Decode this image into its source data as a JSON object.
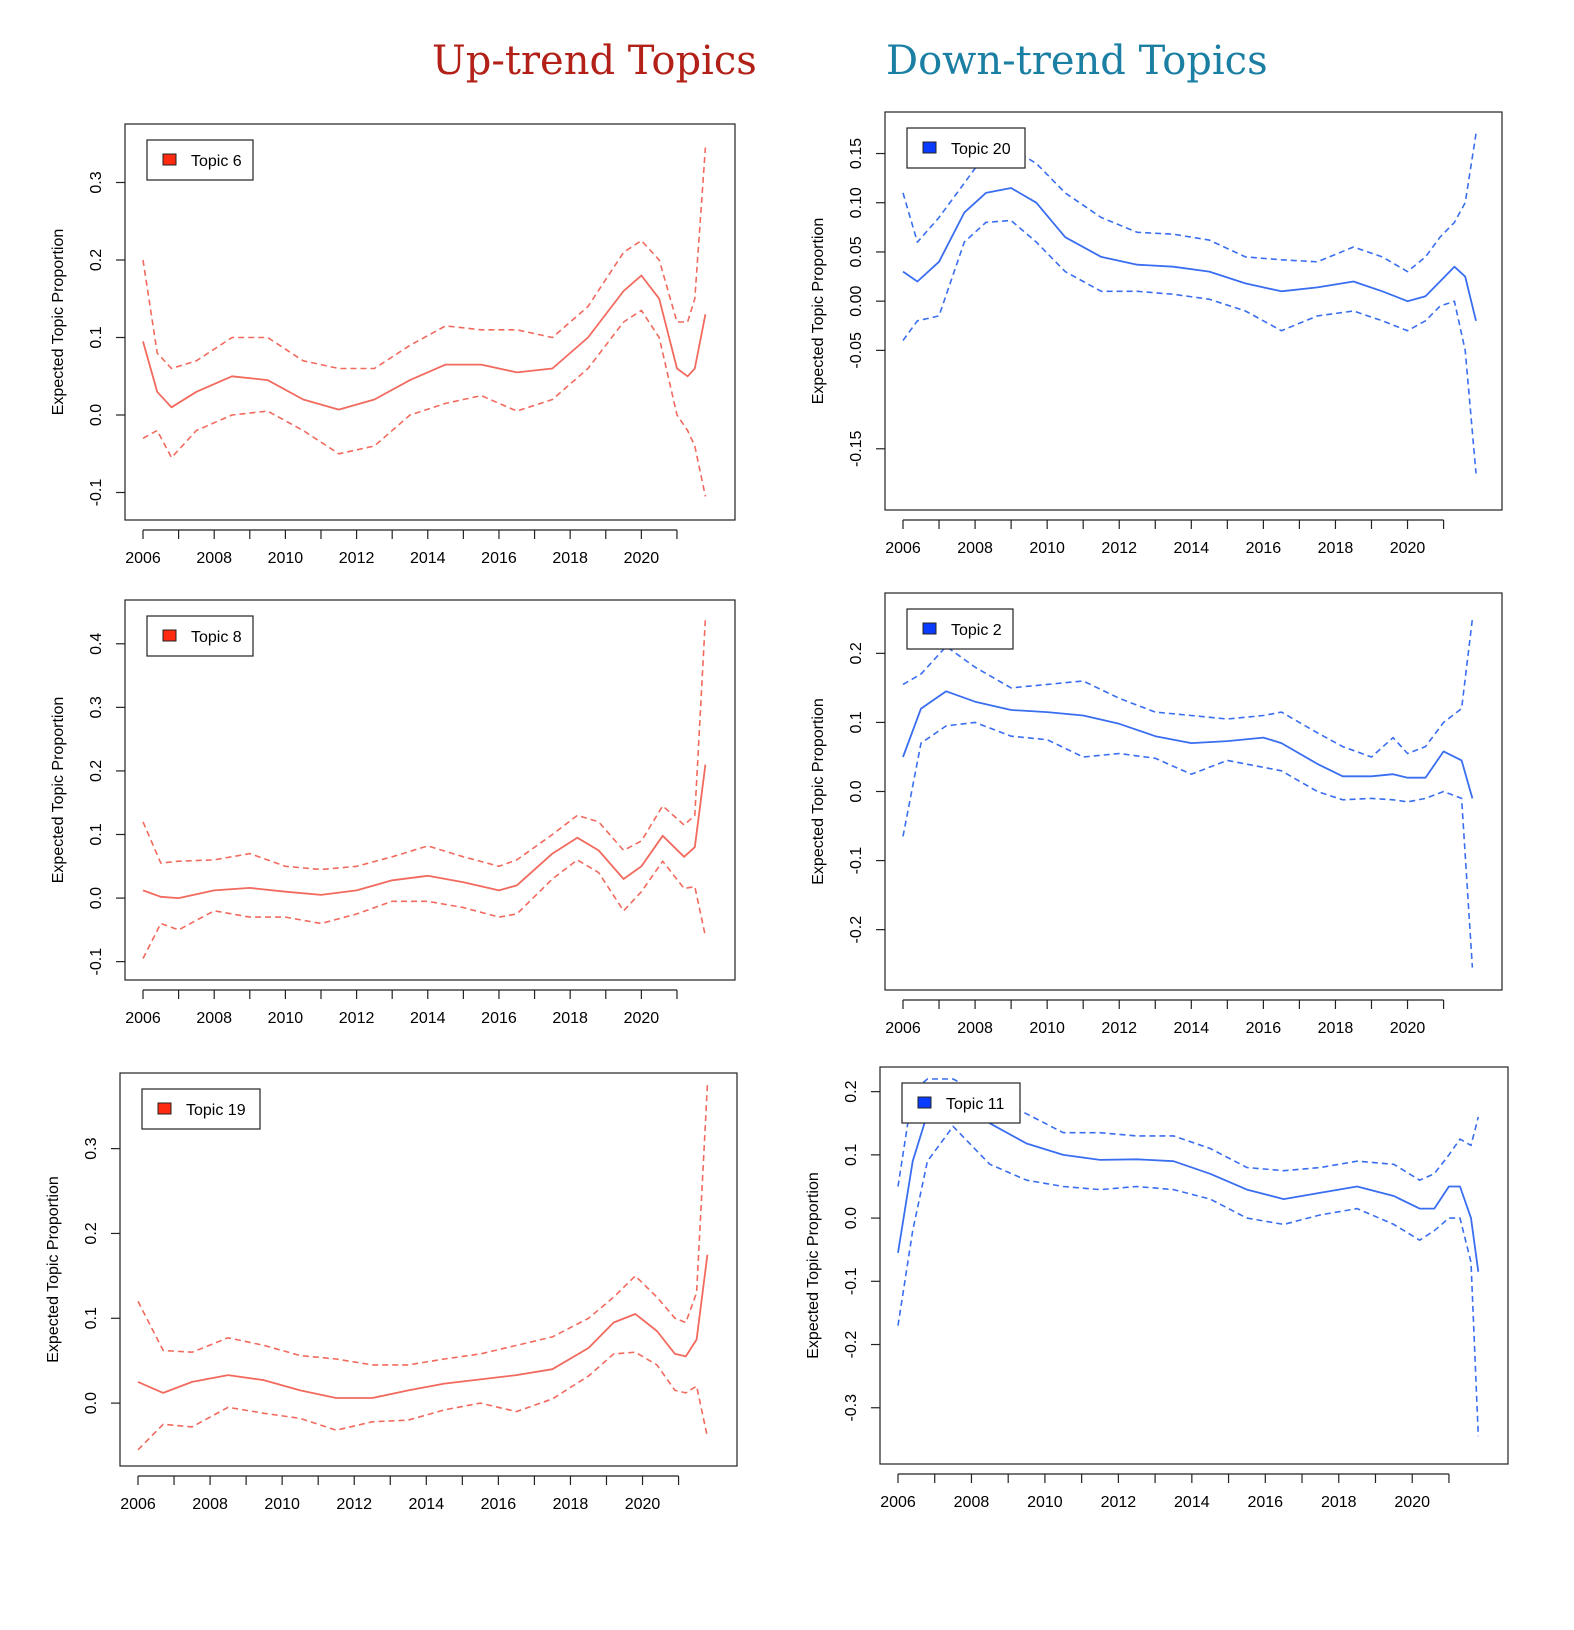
{
  "headings": {
    "up": "Up-trend Topics",
    "down": "Down-trend Topics"
  },
  "colors": {
    "up_heading": "#b22018",
    "down_heading": "#1a7fa3",
    "up_line": "#f26a5e",
    "down_line": "#3a6ef0",
    "up_legend_swatch": "#ff2a10",
    "down_legend_swatch": "#0a3cff"
  },
  "chart_data": [
    {
      "type": "line",
      "group": "up",
      "legend": "Topic 6",
      "ylabel": "Expected Topic Proportion",
      "xlim": [
        2006,
        2021.9
      ],
      "ylim": [
        -0.12,
        0.36
      ],
      "xticks": [
        2006,
        2008,
        2010,
        2012,
        2014,
        2016,
        2018,
        2020
      ],
      "xminor": [
        2007,
        2009,
        2011,
        2013,
        2015,
        2017,
        2019,
        2021
      ],
      "yticks": [
        -0.1,
        0.0,
        0.1,
        0.2,
        0.3
      ],
      "ytick_labels": [
        "-0.1",
        "0.0",
        "0.1",
        "0.2",
        "0.3"
      ],
      "x": [
        2006,
        2006.4,
        2006.8,
        2007.5,
        2008.5,
        2009.5,
        2010.5,
        2011.5,
        2012.5,
        2013.5,
        2014.5,
        2015.5,
        2016.5,
        2017.5,
        2018.5,
        2019.5,
        2020,
        2020.5,
        2021,
        2021.3,
        2021.5,
        2021.8
      ],
      "mean": [
        0.095,
        0.03,
        0.01,
        0.03,
        0.05,
        0.045,
        0.02,
        0.007,
        0.02,
        0.045,
        0.065,
        0.065,
        0.055,
        0.06,
        0.1,
        0.16,
        0.18,
        0.15,
        0.06,
        0.05,
        0.06,
        0.13
      ],
      "upper": [
        0.2,
        0.08,
        0.06,
        0.07,
        0.1,
        0.1,
        0.07,
        0.06,
        0.06,
        0.09,
        0.115,
        0.11,
        0.11,
        0.1,
        0.14,
        0.21,
        0.225,
        0.2,
        0.12,
        0.12,
        0.15,
        0.345
      ],
      "lower": [
        -0.03,
        -0.02,
        -0.055,
        -0.02,
        0.0,
        0.005,
        -0.02,
        -0.05,
        -0.04,
        0.0,
        0.015,
        0.025,
        0.005,
        0.02,
        0.06,
        0.12,
        0.135,
        0.1,
        0.0,
        -0.02,
        -0.04,
        -0.105
      ]
    },
    {
      "type": "line",
      "group": "down",
      "legend": "Topic 20",
      "ylabel": "Expected Topic Proportion",
      "xlim": [
        2006,
        2021.9
      ],
      "ylim": [
        -0.2,
        0.18
      ],
      "xticks": [
        2006,
        2008,
        2010,
        2012,
        2014,
        2016,
        2018,
        2020
      ],
      "xminor": [
        2007,
        2009,
        2011,
        2013,
        2015,
        2017,
        2019,
        2021
      ],
      "yticks": [
        -0.15,
        -0.05,
        0.0,
        0.05,
        0.1,
        0.15
      ],
      "ytick_labels": [
        "-0.15",
        "-0.05",
        "0.00",
        "0.05",
        "0.10",
        "0.15"
      ],
      "x": [
        2006,
        2006.4,
        2007,
        2007.7,
        2008.3,
        2009,
        2009.7,
        2010.5,
        2011.5,
        2012.5,
        2013.5,
        2014.5,
        2015.5,
        2016.5,
        2017.5,
        2018.5,
        2019.3,
        2020,
        2020.5,
        2020.9,
        2021.3,
        2021.6,
        2021.9
      ],
      "mean": [
        0.03,
        0.02,
        0.04,
        0.09,
        0.11,
        0.115,
        0.1,
        0.065,
        0.045,
        0.037,
        0.035,
        0.03,
        0.018,
        0.01,
        0.014,
        0.02,
        0.01,
        0.0,
        0.005,
        0.02,
        0.035,
        0.025,
        -0.02
      ],
      "upper": [
        0.11,
        0.06,
        0.085,
        0.12,
        0.15,
        0.155,
        0.14,
        0.11,
        0.085,
        0.07,
        0.068,
        0.062,
        0.045,
        0.042,
        0.04,
        0.055,
        0.045,
        0.03,
        0.045,
        0.065,
        0.08,
        0.1,
        0.17
      ],
      "lower": [
        -0.04,
        -0.02,
        -0.015,
        0.06,
        0.08,
        0.082,
        0.06,
        0.03,
        0.01,
        0.01,
        0.007,
        0.002,
        -0.01,
        -0.03,
        -0.015,
        -0.01,
        -0.02,
        -0.03,
        -0.02,
        -0.005,
        0.0,
        -0.05,
        -0.175
      ]
    },
    {
      "type": "line",
      "group": "up",
      "legend": "Topic 8",
      "ylabel": "Expected Topic Proportion",
      "xlim": [
        2006,
        2021.9
      ],
      "ylim": [
        -0.11,
        0.45
      ],
      "xticks": [
        2006,
        2008,
        2010,
        2012,
        2014,
        2016,
        2018,
        2020
      ],
      "xminor": [
        2007,
        2009,
        2011,
        2013,
        2015,
        2017,
        2019,
        2021
      ],
      "yticks": [
        -0.1,
        0.0,
        0.1,
        0.2,
        0.3,
        0.4
      ],
      "ytick_labels": [
        "-0.1",
        "0.0",
        "0.1",
        "0.2",
        "0.3",
        "0.4"
      ],
      "x": [
        2006,
        2006.5,
        2007,
        2008,
        2009,
        2010,
        2011,
        2012,
        2013,
        2014,
        2015,
        2016,
        2016.5,
        2017.5,
        2018.2,
        2018.8,
        2019.5,
        2020,
        2020.6,
        2021.2,
        2021.5,
        2021.8
      ],
      "mean": [
        0.012,
        0.002,
        0.0,
        0.012,
        0.016,
        0.01,
        0.005,
        0.012,
        0.028,
        0.035,
        0.025,
        0.012,
        0.02,
        0.07,
        0.095,
        0.075,
        0.03,
        0.05,
        0.098,
        0.065,
        0.08,
        0.21
      ],
      "upper": [
        0.12,
        0.055,
        0.058,
        0.06,
        0.07,
        0.05,
        0.045,
        0.05,
        0.065,
        0.082,
        0.065,
        0.05,
        0.06,
        0.1,
        0.13,
        0.12,
        0.075,
        0.09,
        0.145,
        0.115,
        0.13,
        0.44
      ],
      "lower": [
        -0.095,
        -0.04,
        -0.05,
        -0.02,
        -0.03,
        -0.03,
        -0.04,
        -0.025,
        -0.005,
        -0.005,
        -0.015,
        -0.03,
        -0.025,
        0.03,
        0.06,
        0.04,
        -0.02,
        0.01,
        0.058,
        0.015,
        0.018,
        -0.06
      ]
    },
    {
      "type": "line",
      "group": "down",
      "legend": "Topic 2",
      "ylabel": "Expected Topic Proportion",
      "xlim": [
        2006,
        2021.9
      ],
      "ylim": [
        -0.27,
        0.27
      ],
      "xticks": [
        2006,
        2008,
        2010,
        2012,
        2014,
        2016,
        2018,
        2020
      ],
      "xminor": [
        2007,
        2009,
        2011,
        2013,
        2015,
        2017,
        2019,
        2021
      ],
      "yticks": [
        -0.2,
        -0.1,
        0.0,
        0.1,
        0.2
      ],
      "ytick_labels": [
        "-0.2",
        "-0.1",
        "0.0",
        "0.1",
        "0.2"
      ],
      "x": [
        2006,
        2006.5,
        2007.2,
        2008,
        2009,
        2010,
        2011,
        2012,
        2013,
        2014,
        2015,
        2016,
        2016.5,
        2017.5,
        2018.2,
        2019,
        2019.6,
        2020,
        2020.5,
        2021,
        2021.5,
        2021.8
      ],
      "mean": [
        0.05,
        0.12,
        0.145,
        0.13,
        0.118,
        0.115,
        0.11,
        0.098,
        0.08,
        0.07,
        0.073,
        0.078,
        0.07,
        0.04,
        0.022,
        0.022,
        0.025,
        0.02,
        0.02,
        0.058,
        0.045,
        -0.01
      ],
      "upper": [
        0.155,
        0.17,
        0.21,
        0.18,
        0.15,
        0.155,
        0.16,
        0.135,
        0.115,
        0.11,
        0.105,
        0.11,
        0.115,
        0.085,
        0.065,
        0.05,
        0.078,
        0.055,
        0.065,
        0.1,
        0.12,
        0.25
      ],
      "lower": [
        -0.065,
        0.07,
        0.095,
        0.1,
        0.08,
        0.075,
        0.05,
        0.055,
        0.048,
        0.025,
        0.045,
        0.035,
        0.03,
        0.0,
        -0.012,
        -0.01,
        -0.012,
        -0.015,
        -0.01,
        0.0,
        -0.01,
        -0.255
      ]
    },
    {
      "type": "line",
      "group": "up",
      "legend": "Topic 19",
      "ylabel": "Expected Topic Proportion",
      "xlim": [
        2006,
        2021.9
      ],
      "ylim": [
        -0.06,
        0.375
      ],
      "xticks": [
        2006,
        2008,
        2010,
        2012,
        2014,
        2016,
        2018,
        2020
      ],
      "xminor": [
        2007,
        2009,
        2011,
        2013,
        2015,
        2017,
        2019,
        2021
      ],
      "yticks": [
        0.0,
        0.1,
        0.2,
        0.3
      ],
      "ytick_labels": [
        "0.0",
        "0.1",
        "0.2",
        "0.3"
      ],
      "x": [
        2006,
        2006.7,
        2007.5,
        2008.5,
        2009.5,
        2010.5,
        2011.5,
        2012.5,
        2013.5,
        2014.5,
        2015.5,
        2016.5,
        2017.5,
        2018.5,
        2019.2,
        2019.8,
        2020.4,
        2020.9,
        2021.2,
        2021.5,
        2021.8
      ],
      "mean": [
        0.025,
        0.012,
        0.025,
        0.033,
        0.027,
        0.015,
        0.006,
        0.006,
        0.015,
        0.023,
        0.028,
        0.033,
        0.04,
        0.065,
        0.095,
        0.105,
        0.085,
        0.058,
        0.055,
        0.075,
        0.175
      ],
      "upper": [
        0.12,
        0.062,
        0.06,
        0.077,
        0.068,
        0.056,
        0.052,
        0.045,
        0.045,
        0.052,
        0.058,
        0.068,
        0.078,
        0.1,
        0.125,
        0.15,
        0.125,
        0.1,
        0.095,
        0.13,
        0.375
      ],
      "lower": [
        -0.055,
        -0.025,
        -0.028,
        -0.005,
        -0.012,
        -0.018,
        -0.032,
        -0.022,
        -0.02,
        -0.008,
        0.0,
        -0.01,
        0.005,
        0.032,
        0.058,
        0.06,
        0.045,
        0.015,
        0.012,
        0.02,
        -0.04
      ]
    },
    {
      "type": "line",
      "group": "down",
      "legend": "Topic 11",
      "ylabel": "Expected Topic Proportion",
      "xlim": [
        2006,
        2021.9
      ],
      "ylim": [
        -0.37,
        0.22
      ],
      "xticks": [
        2006,
        2008,
        2010,
        2012,
        2014,
        2016,
        2018,
        2020
      ],
      "xminor": [
        2007,
        2009,
        2011,
        2013,
        2015,
        2017,
        2019,
        2021
      ],
      "yticks": [
        -0.3,
        -0.2,
        -0.1,
        0.0,
        0.1,
        0.2
      ],
      "ytick_labels": [
        "-0.3",
        "-0.2",
        "-0.1",
        "0.0",
        "0.1",
        "0.2"
      ],
      "x": [
        2006,
        2006.4,
        2006.8,
        2007.5,
        2008.5,
        2009.5,
        2010.5,
        2011.5,
        2012.5,
        2013.5,
        2014.5,
        2015.5,
        2016.5,
        2017.5,
        2018.5,
        2019.5,
        2020.2,
        2020.6,
        2021,
        2021.3,
        2021.6,
        2021.8
      ],
      "mean": [
        -0.055,
        0.09,
        0.165,
        0.19,
        0.15,
        0.118,
        0.1,
        0.092,
        0.093,
        0.09,
        0.07,
        0.045,
        0.03,
        0.04,
        0.05,
        0.035,
        0.015,
        0.015,
        0.05,
        0.05,
        0.0,
        -0.085
      ],
      "upper": [
        0.05,
        0.2,
        0.22,
        0.22,
        0.19,
        0.165,
        0.135,
        0.135,
        0.13,
        0.13,
        0.11,
        0.08,
        0.075,
        0.08,
        0.09,
        0.085,
        0.06,
        0.07,
        0.1,
        0.125,
        0.115,
        0.16
      ],
      "lower": [
        -0.17,
        -0.02,
        0.09,
        0.145,
        0.085,
        0.06,
        0.05,
        0.045,
        0.05,
        0.045,
        0.03,
        0.0,
        -0.01,
        0.005,
        0.015,
        -0.01,
        -0.035,
        -0.02,
        0.0,
        0.0,
        -0.07,
        -0.345
      ]
    }
  ]
}
